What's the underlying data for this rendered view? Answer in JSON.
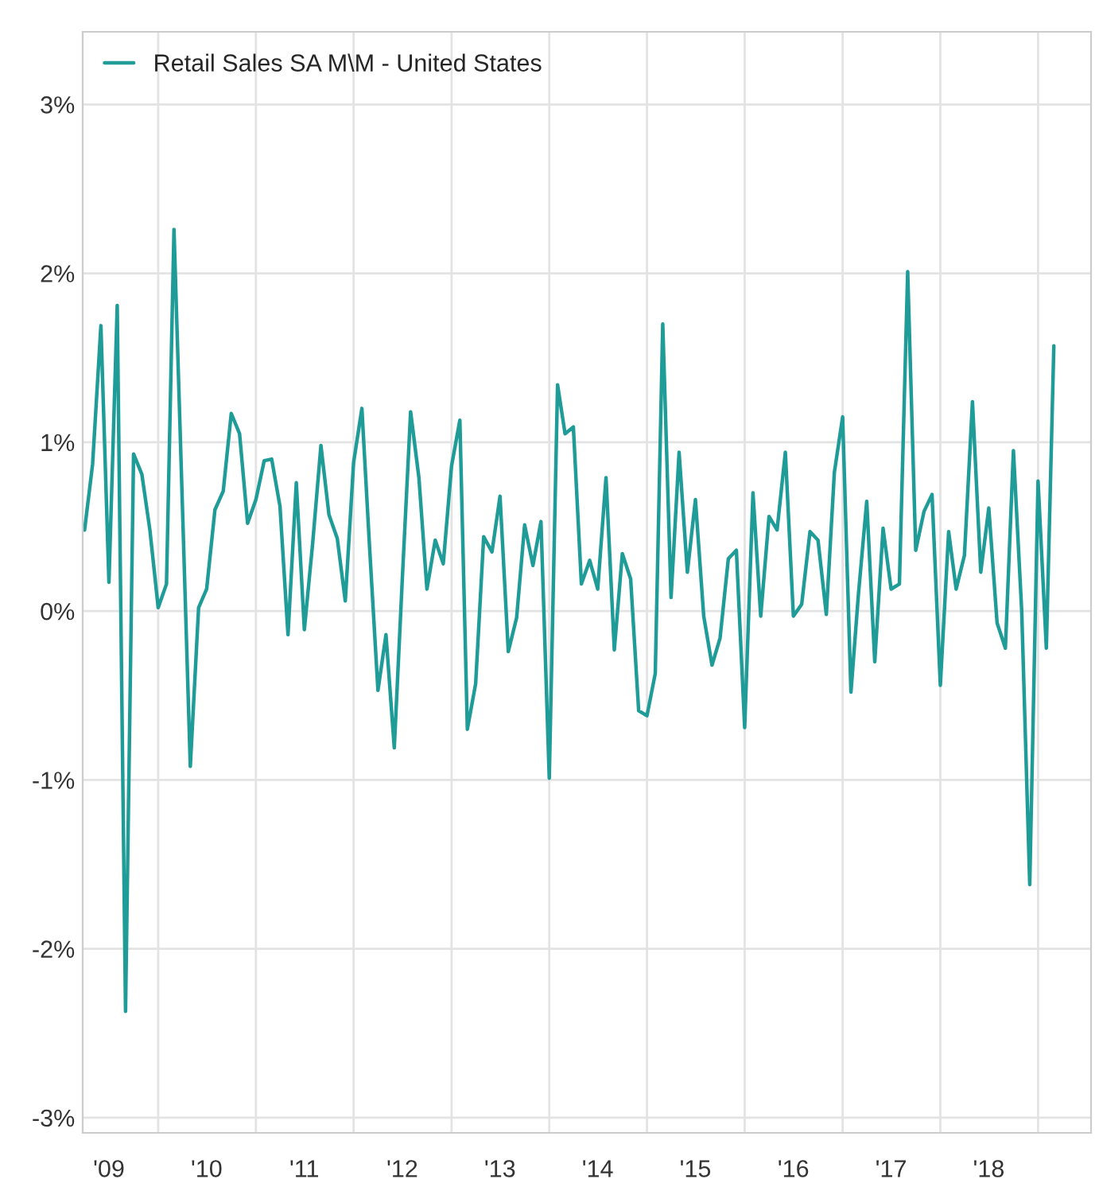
{
  "chart_data": {
    "type": "line",
    "series": [
      {
        "name": "Retail Sales SA M\\M - United States",
        "color": "#1f9c98",
        "values": [
          0.48,
          0.87,
          1.69,
          0.17,
          1.81,
          -2.37,
          0.93,
          0.81,
          0.48,
          0.02,
          0.16,
          2.26,
          0.65,
          -0.92,
          0.02,
          0.13,
          0.6,
          0.71,
          1.17,
          1.05,
          0.52,
          0.66,
          0.89,
          0.9,
          0.62,
          -0.14,
          0.76,
          -0.11,
          0.4,
          0.98,
          0.57,
          0.43,
          0.06,
          0.88,
          1.2,
          0.37,
          -0.47,
          -0.14,
          -0.81,
          0.19,
          1.18,
          0.79,
          0.13,
          0.42,
          0.28,
          0.86,
          1.13,
          -0.7,
          -0.43,
          0.44,
          0.35,
          0.68,
          -0.24,
          -0.04,
          0.51,
          0.27,
          0.53,
          -0.99,
          1.34,
          1.05,
          1.09,
          0.16,
          0.3,
          0.13,
          0.79,
          -0.23,
          0.34,
          0.19,
          -0.59,
          -0.62,
          -0.37,
          1.7,
          0.08,
          0.94,
          0.23,
          0.66,
          -0.03,
          -0.32,
          -0.16,
          0.31,
          0.36,
          -0.69,
          0.7,
          -0.03,
          0.56,
          0.48,
          0.94,
          -0.03,
          0.04,
          0.47,
          0.42,
          -0.02,
          0.82,
          1.15,
          -0.48,
          0.1,
          0.65,
          -0.3,
          0.49,
          0.13,
          0.16,
          2.01,
          0.36,
          0.59,
          0.69,
          -0.44,
          0.47,
          0.13,
          0.33,
          1.24,
          0.23,
          0.61,
          -0.07,
          -0.22,
          0.95,
          0.0,
          -1.62,
          0.77,
          -0.22,
          1.57
        ]
      }
    ],
    "x": [
      "2009-04",
      "2009-05",
      "2009-06",
      "2009-07",
      "2009-08",
      "2009-09",
      "2009-10",
      "2009-11",
      "2009-12",
      "2010-01",
      "2010-02",
      "2010-03",
      "2010-04",
      "2010-05",
      "2010-06",
      "2010-07",
      "2010-08",
      "2010-09",
      "2010-10",
      "2010-11",
      "2010-12",
      "2011-01",
      "2011-02",
      "2011-03",
      "2011-04",
      "2011-05",
      "2011-06",
      "2011-07",
      "2011-08",
      "2011-09",
      "2011-10",
      "2011-11",
      "2011-12",
      "2012-01",
      "2012-02",
      "2012-03",
      "2012-04",
      "2012-05",
      "2012-06",
      "2012-07",
      "2012-08",
      "2012-09",
      "2012-10",
      "2012-11",
      "2012-12",
      "2013-01",
      "2013-02",
      "2013-03",
      "2013-04",
      "2013-05",
      "2013-06",
      "2013-07",
      "2013-08",
      "2013-09",
      "2013-10",
      "2013-11",
      "2013-12",
      "2014-01",
      "2014-02",
      "2014-03",
      "2014-04",
      "2014-05",
      "2014-06",
      "2014-07",
      "2014-08",
      "2014-09",
      "2014-10",
      "2014-11",
      "2014-12",
      "2015-01",
      "2015-02",
      "2015-03",
      "2015-04",
      "2015-05",
      "2015-06",
      "2015-07",
      "2015-08",
      "2015-09",
      "2015-10",
      "2015-11",
      "2015-12",
      "2016-01",
      "2016-02",
      "2016-03",
      "2016-04",
      "2016-05",
      "2016-06",
      "2016-07",
      "2016-08",
      "2016-09",
      "2016-10",
      "2016-11",
      "2016-12",
      "2017-01",
      "2017-02",
      "2017-03",
      "2017-04",
      "2017-05",
      "2017-06",
      "2017-07",
      "2017-08",
      "2017-09",
      "2017-10",
      "2017-11",
      "2017-12",
      "2018-01",
      "2018-02",
      "2018-03",
      "2018-04",
      "2018-05",
      "2018-06",
      "2018-07",
      "2018-08",
      "2018-09",
      "2018-10",
      "2018-11",
      "2018-12",
      "2019-01",
      "2019-02",
      "2019-03"
    ],
    "xlim": [
      "2009-03-25",
      "2019-07-18"
    ],
    "xticks": [
      {
        "value": "2009-07-01",
        "label": "'09"
      },
      {
        "value": "2010-01-01",
        "label": null
      },
      {
        "value": "2010-07-01",
        "label": "'10"
      },
      {
        "value": "2011-01-01",
        "label": null
      },
      {
        "value": "2011-07-01",
        "label": "'11"
      },
      {
        "value": "2012-01-01",
        "label": null
      },
      {
        "value": "2012-07-01",
        "label": "'12"
      },
      {
        "value": "2013-01-01",
        "label": null
      },
      {
        "value": "2013-07-01",
        "label": "'13"
      },
      {
        "value": "2014-01-01",
        "label": null
      },
      {
        "value": "2014-07-01",
        "label": "'14"
      },
      {
        "value": "2015-01-01",
        "label": null
      },
      {
        "value": "2015-07-01",
        "label": "'15"
      },
      {
        "value": "2016-01-01",
        "label": null
      },
      {
        "value": "2016-07-01",
        "label": "'16"
      },
      {
        "value": "2017-01-01",
        "label": null
      },
      {
        "value": "2017-07-01",
        "label": "'17"
      },
      {
        "value": "2018-01-01",
        "label": null
      },
      {
        "value": "2018-07-01",
        "label": "'18"
      },
      {
        "value": "2019-01-01",
        "label": null
      }
    ],
    "ylim": [
      -3.09,
      3.43
    ],
    "yticks": [
      {
        "value": -3,
        "label": "-3%"
      },
      {
        "value": -2,
        "label": "-2%"
      },
      {
        "value": -1,
        "label": "-1%"
      },
      {
        "value": 0,
        "label": "0%"
      },
      {
        "value": 1,
        "label": "1%"
      },
      {
        "value": 2,
        "label": "2%"
      },
      {
        "value": 3,
        "label": "3%"
      }
    ],
    "grid": true,
    "legend": "top left",
    "line_style": "solid"
  }
}
